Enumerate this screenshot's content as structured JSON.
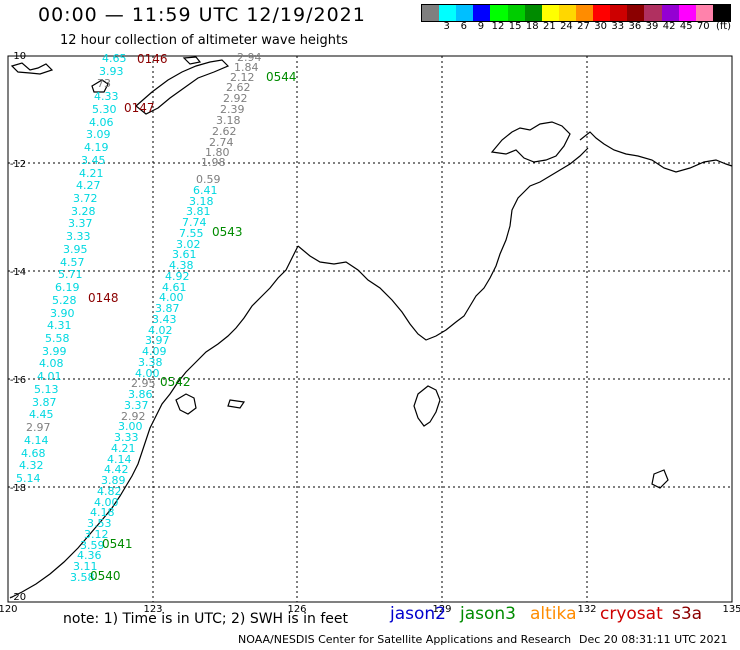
{
  "header": {
    "title": "00:00 — 11:59 UTC 12/19/2021",
    "subtitle": "12 hour collection of altimeter wave heights"
  },
  "colorbar": {
    "colors": [
      "#7f7f7f",
      "#00ffff",
      "#00bfff",
      "#0000ff",
      "#00ff00",
      "#00cd00",
      "#008b00",
      "#ffff00",
      "#ffd700",
      "#ff8c00",
      "#ff0000",
      "#cd0000",
      "#8b0000",
      "#b03060",
      "#9400d3",
      "#ff00ff",
      "#ff82ab",
      "#000000"
    ],
    "ticks": [
      "",
      "3",
      "6",
      "9",
      "12",
      "15",
      "18",
      "21",
      "24",
      "27",
      "30",
      "33",
      "36",
      "39",
      "42",
      "45",
      "70",
      ""
    ],
    "unit": "(ft)"
  },
  "map": {
    "lon_labels": [
      "120",
      "123",
      "126",
      "129",
      "132",
      "135"
    ],
    "lat_labels": [
      "-10",
      "-12",
      "-14",
      "-16",
      "-18",
      "-20"
    ],
    "track_colors": {
      "jason3": "#008b00",
      "cryosat": "#8b0000",
      "gray": "#7f7f7f",
      "cyan": "#00d8e0"
    },
    "passes": [
      {
        "label": "0146",
        "color": "cryosat"
      },
      {
        "label": "0147",
        "color": "cryosat"
      },
      {
        "label": "0148",
        "color": "cryosat"
      },
      {
        "label": "0544",
        "color": "jason3"
      },
      {
        "label": "0543",
        "color": "jason3"
      },
      {
        "label": "0542",
        "color": "jason3"
      },
      {
        "label": "0541",
        "color": "jason3"
      },
      {
        "label": "0540",
        "color": "jason3"
      }
    ],
    "track_a_gray": [
      "2.94",
      "1.84",
      "2.12",
      "2.62",
      "2.92",
      "2.39",
      "3.18",
      "2.62",
      "2.74",
      "1.80",
      "1.98"
    ],
    "track_b": [
      {
        "v": "0.59",
        "c": "gray"
      },
      {
        "v": "6.41",
        "c": "cyan"
      },
      {
        "v": "3.18",
        "c": "cyan"
      },
      {
        "v": "3.81",
        "c": "cyan"
      },
      {
        "v": "7.74",
        "c": "cyan"
      },
      {
        "v": "7.55",
        "c": "cyan"
      },
      {
        "v": "3.02",
        "c": "cyan"
      },
      {
        "v": "3.61",
        "c": "cyan"
      },
      {
        "v": "4.38",
        "c": "cyan"
      },
      {
        "v": "4.92",
        "c": "cyan"
      },
      {
        "v": "4.61",
        "c": "cyan"
      },
      {
        "v": "4.00",
        "c": "cyan"
      },
      {
        "v": "3.87",
        "c": "cyan"
      },
      {
        "v": "3.43",
        "c": "cyan"
      },
      {
        "v": "4.02",
        "c": "cyan"
      },
      {
        "v": "3.97",
        "c": "cyan"
      },
      {
        "v": "4.09",
        "c": "cyan"
      },
      {
        "v": "3.38",
        "c": "cyan"
      },
      {
        "v": "4.00",
        "c": "cyan"
      },
      {
        "v": "2.95",
        "c": "gray"
      },
      {
        "v": "3.86",
        "c": "cyan"
      },
      {
        "v": "3.37",
        "c": "cyan"
      },
      {
        "v": "2.92",
        "c": "gray"
      },
      {
        "v": "3.00",
        "c": "cyan"
      },
      {
        "v": "3.33",
        "c": "cyan"
      },
      {
        "v": "4.21",
        "c": "cyan"
      },
      {
        "v": "4.14",
        "c": "cyan"
      },
      {
        "v": "4.42",
        "c": "cyan"
      },
      {
        "v": "3.89",
        "c": "cyan"
      },
      {
        "v": "4.82",
        "c": "cyan"
      },
      {
        "v": "4.00",
        "c": "cyan"
      },
      {
        "v": "4.18",
        "c": "cyan"
      },
      {
        "v": "3.53",
        "c": "cyan"
      },
      {
        "v": "3.12",
        "c": "cyan"
      },
      {
        "v": "3.59",
        "c": "cyan"
      },
      {
        "v": "4.36",
        "c": "cyan"
      },
      {
        "v": "3.11",
        "c": "cyan"
      },
      {
        "v": "3.58",
        "c": "cyan"
      }
    ],
    "track_c": [
      {
        "v": "4.65",
        "c": "cyan"
      },
      {
        "v": "3.93",
        "c": "cyan"
      },
      {
        "v": "73",
        "c": "gray"
      },
      {
        "v": "4.33",
        "c": "cyan"
      },
      {
        "v": "5.30",
        "c": "cyan"
      },
      {
        "v": "4.06",
        "c": "cyan"
      },
      {
        "v": "3.09",
        "c": "cyan"
      },
      {
        "v": "4.19",
        "c": "cyan"
      },
      {
        "v": "3.45",
        "c": "cyan"
      },
      {
        "v": "4.21",
        "c": "cyan"
      },
      {
        "v": "4.27",
        "c": "cyan"
      },
      {
        "v": "3.72",
        "c": "cyan"
      },
      {
        "v": "3.28",
        "c": "cyan"
      },
      {
        "v": "3.37",
        "c": "cyan"
      },
      {
        "v": "3.33",
        "c": "cyan"
      },
      {
        "v": "3.95",
        "c": "cyan"
      },
      {
        "v": "4.57",
        "c": "cyan"
      },
      {
        "v": "5.71",
        "c": "cyan"
      },
      {
        "v": "6.19",
        "c": "cyan"
      },
      {
        "v": "5.28",
        "c": "cyan"
      },
      {
        "v": "3.90",
        "c": "cyan"
      },
      {
        "v": "4.31",
        "c": "cyan"
      },
      {
        "v": "5.58",
        "c": "cyan"
      },
      {
        "v": "3.99",
        "c": "cyan"
      },
      {
        "v": "4.08",
        "c": "cyan"
      },
      {
        "v": "4.01",
        "c": "cyan"
      },
      {
        "v": "5.13",
        "c": "cyan"
      },
      {
        "v": "3.87",
        "c": "cyan"
      },
      {
        "v": "4.45",
        "c": "cyan"
      },
      {
        "v": "2.97",
        "c": "gray"
      },
      {
        "v": "4.14",
        "c": "cyan"
      },
      {
        "v": "4.68",
        "c": "cyan"
      },
      {
        "v": "4.32",
        "c": "cyan"
      },
      {
        "v": "5.14",
        "c": "cyan"
      }
    ]
  },
  "footer": {
    "note": "note:  1) Time is in UTC;  2) SWH is in feet",
    "satellites": [
      {
        "name": "jason2",
        "color": "#0000cd"
      },
      {
        "name": "jason3",
        "color": "#008b00"
      },
      {
        "name": "altika",
        "color": "#ff8c00"
      },
      {
        "name": "cryosat",
        "color": "#cd0000"
      },
      {
        "name": "s3a",
        "color": "#8b0000"
      }
    ],
    "credit": "NOAA/NESDIS Center for Satellite Applications and Research",
    "timestamp": "Dec 20 08:31:11 UTC 2021"
  }
}
